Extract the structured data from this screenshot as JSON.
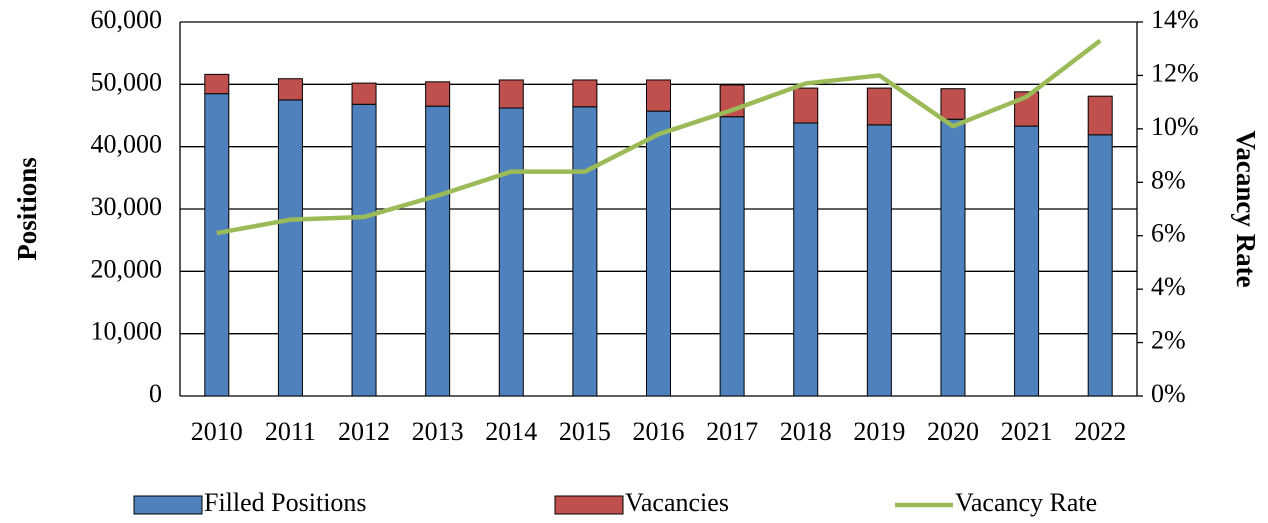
{
  "chart_data": {
    "type": "bar",
    "stacked": true,
    "categories": [
      "2010",
      "2011",
      "2012",
      "2013",
      "2014",
      "2015",
      "2016",
      "2017",
      "2018",
      "2019",
      "2020",
      "2021",
      "2022"
    ],
    "series": [
      {
        "name": "Filled Positions",
        "color": "#4f81bd",
        "values": [
          48500,
          47500,
          46800,
          46500,
          46200,
          46400,
          45700,
          44800,
          43800,
          43500,
          44400,
          43300,
          41900
        ]
      },
      {
        "name": "Vacancies",
        "color": "#c0504d",
        "values": [
          3100,
          3400,
          3400,
          3900,
          4500,
          4300,
          5000,
          5100,
          5600,
          5900,
          4900,
          5500,
          6200
        ]
      },
      {
        "name": "Vacancy Rate",
        "type": "line",
        "axis": "y2",
        "color": "#9bbb59",
        "values": [
          6.1,
          6.6,
          6.7,
          7.5,
          8.4,
          8.4,
          9.8,
          10.7,
          11.7,
          12.0,
          10.1,
          11.2,
          13.3
        ]
      }
    ],
    "ylabel": "Positions",
    "y2label": "Vacancy Rate",
    "ylim": [
      0,
      60000
    ],
    "yticks": [
      0,
      {
        "value": 10000,
        "label": "10,000"
      },
      {
        "value": 20000,
        "label": "20,000"
      },
      {
        "value": 30000,
        "label": "30,000"
      },
      {
        "value": 40000,
        "label": "40,000"
      },
      {
        "value": 50000,
        "label": "50,000"
      },
      {
        "value": 60000,
        "label": "60,000"
      }
    ],
    "y2lim": [
      0,
      14
    ],
    "y2ticks": [
      {
        "value": 0,
        "label": "0%"
      },
      {
        "value": 2,
        "label": "2%"
      },
      {
        "value": 4,
        "label": "4%"
      },
      {
        "value": 6,
        "label": "6%"
      },
      {
        "value": 8,
        "label": "8%"
      },
      {
        "value": 10,
        "label": "10%"
      },
      {
        "value": 12,
        "label": "12%"
      },
      {
        "value": 14,
        "label": "14%"
      }
    ],
    "grid": true,
    "legend": "bottom"
  }
}
